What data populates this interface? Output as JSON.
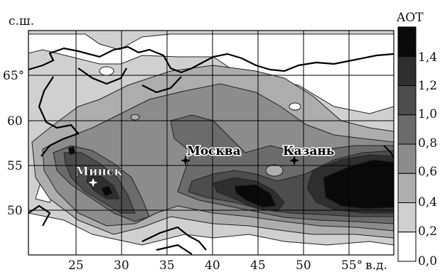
{
  "map": {
    "lat_axis_label": "с.ш.",
    "lon_axis_label": "в.д.",
    "lat_ticks": [
      "65°",
      "60",
      "55",
      "50"
    ],
    "lon_ticks": [
      "25",
      "30",
      "35",
      "40",
      "45",
      "50",
      "55°"
    ],
    "cities": [
      {
        "name": "Минск",
        "style": "white-star"
      },
      {
        "name": "Москва",
        "style": "black-star"
      },
      {
        "name": "Казань",
        "style": "black-star"
      }
    ]
  },
  "legend": {
    "title": "AOT",
    "labels": [
      "1,4",
      "1,2",
      "1,0",
      "0,8",
      "0,6",
      "0,4",
      "0,2",
      "0,0"
    ],
    "colors": [
      "#0a0a0a",
      "#2f2f2f",
      "#4d4d4d",
      "#6b6b6b",
      "#8c8c8c",
      "#adadad",
      "#d0d0d0",
      "#ffffff"
    ]
  }
}
